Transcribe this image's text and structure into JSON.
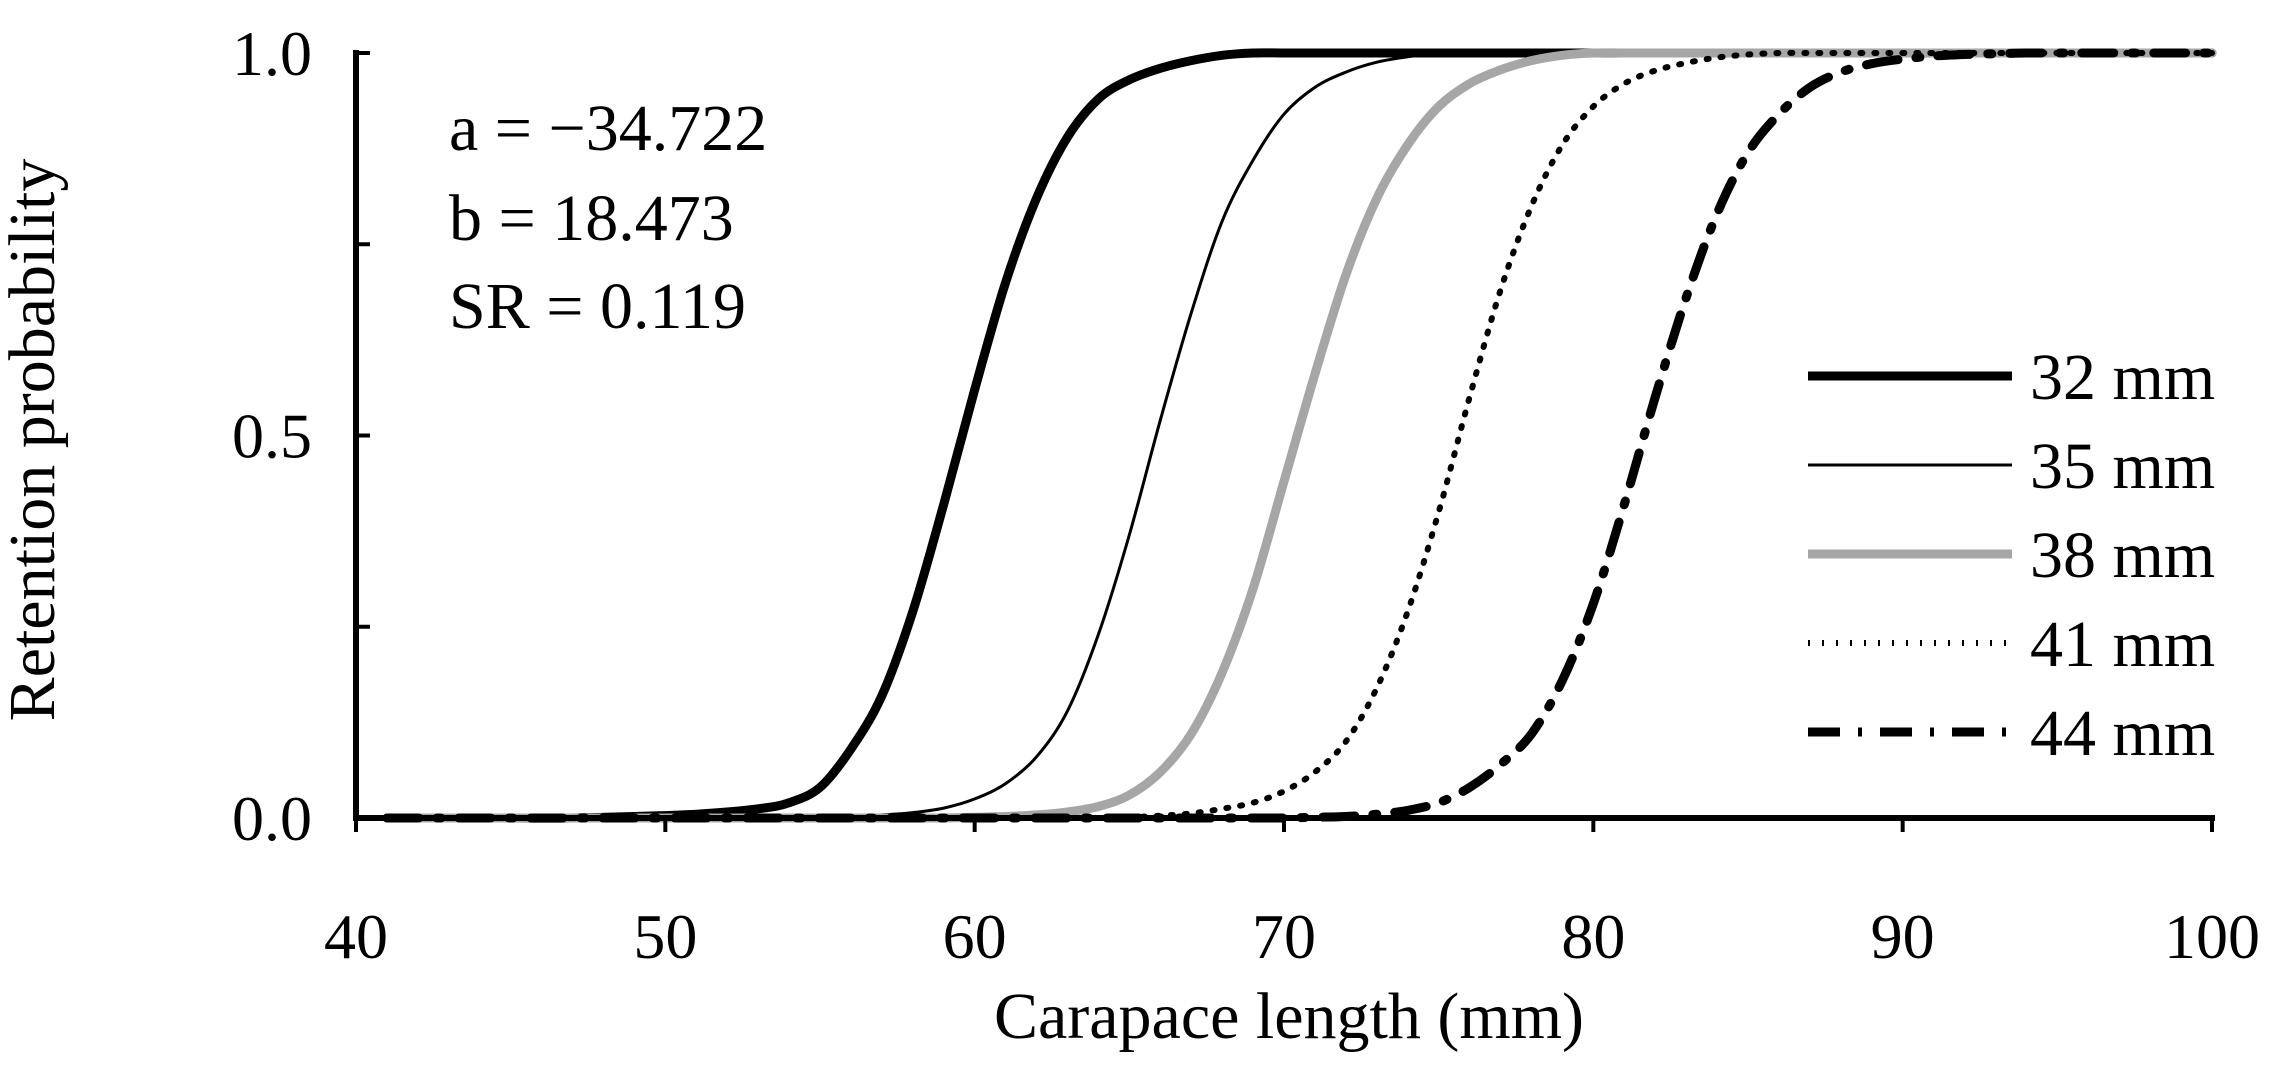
{
  "chart_data": {
    "type": "line",
    "title": "",
    "xlabel": "Carapace length (mm)",
    "ylabel": "Retention probability",
    "xlim": [
      40,
      100
    ],
    "ylim": [
      0,
      1
    ],
    "xticks": [
      40,
      50,
      60,
      70,
      80,
      90,
      100
    ],
    "xtick_labels": [
      "40",
      "50",
      "60",
      "70",
      "80",
      "90",
      "100"
    ],
    "yticks": [
      0,
      0.25,
      0.5,
      0.75,
      1.0
    ],
    "ytick_labels": [
      "0.0",
      "",
      "0.5",
      "",
      "1.0"
    ],
    "grid": false,
    "legend_position": "right",
    "annotation_lines": [
      "a = −34.722",
      "b = 18.473",
      "SR = 0.119"
    ],
    "parameters": {
      "a": -34.722,
      "b": 18.473,
      "SR": 0.119
    },
    "x": [
      41,
      43,
      45,
      47,
      49,
      51,
      53,
      54,
      55,
      56,
      57,
      58,
      59,
      60,
      61,
      62,
      63,
      64,
      65,
      66,
      67,
      68,
      69,
      70,
      71,
      72,
      73,
      74,
      75,
      76,
      77,
      78,
      79,
      80,
      81,
      82,
      83,
      84,
      85,
      86,
      87,
      88,
      89,
      90,
      91,
      92,
      93,
      94,
      95,
      96,
      97,
      98,
      99,
      100
    ],
    "series": [
      {
        "name": "32 mm",
        "color": "#000000",
        "style": "thick-solid",
        "values": [
          0,
          0,
          0,
          0,
          0.002,
          0.005,
          0.012,
          0.02,
          0.04,
          0.09,
          0.16,
          0.27,
          0.41,
          0.56,
          0.7,
          0.81,
          0.89,
          0.94,
          0.965,
          0.98,
          0.99,
          0.997,
          1,
          1,
          1,
          1,
          1,
          1,
          1,
          1,
          1,
          1,
          1,
          1,
          1,
          1,
          1,
          1,
          1,
          1,
          1,
          1,
          1,
          1,
          1,
          1,
          1,
          1,
          1,
          1,
          1,
          1,
          1,
          1
        ]
      },
      {
        "name": "35 mm",
        "color": "#000000",
        "style": "thin-solid",
        "values": [
          0,
          0,
          0,
          0,
          0,
          0,
          0,
          0,
          0.001,
          0.002,
          0.004,
          0.007,
          0.013,
          0.025,
          0.045,
          0.08,
          0.14,
          0.24,
          0.37,
          0.52,
          0.66,
          0.78,
          0.86,
          0.92,
          0.955,
          0.975,
          0.988,
          0.995,
          1,
          1,
          1,
          1,
          1,
          1,
          1,
          1,
          1,
          1,
          1,
          1,
          1,
          1,
          1,
          1,
          1,
          1,
          1,
          1,
          1,
          1,
          1,
          1,
          1,
          1
        ]
      },
      {
        "name": "38 mm",
        "color": "#a6a6a6",
        "style": "thick-solid",
        "values": [
          0,
          0,
          0,
          0,
          0,
          0,
          0,
          0,
          0,
          0,
          0,
          0,
          0,
          0.001,
          0.002,
          0.004,
          0.008,
          0.015,
          0.03,
          0.06,
          0.11,
          0.19,
          0.3,
          0.44,
          0.58,
          0.71,
          0.81,
          0.88,
          0.93,
          0.96,
          0.978,
          0.99,
          0.997,
          1,
          1,
          1,
          1,
          1,
          1,
          1,
          1,
          1,
          1,
          1,
          1,
          1,
          1,
          1,
          1,
          1,
          1,
          1,
          1,
          1
        ]
      },
      {
        "name": "41 mm",
        "color": "#000000",
        "style": "dotted",
        "values": [
          0,
          0,
          0,
          0,
          0,
          0,
          0,
          0,
          0,
          0,
          0,
          0,
          0,
          0,
          0,
          0,
          0,
          0,
          0.001,
          0.003,
          0.006,
          0.012,
          0.02,
          0.035,
          0.06,
          0.1,
          0.17,
          0.27,
          0.4,
          0.55,
          0.69,
          0.8,
          0.88,
          0.93,
          0.96,
          0.977,
          0.987,
          0.994,
          0.998,
          1,
          1,
          1,
          1,
          1,
          1,
          1,
          1,
          1,
          1,
          1,
          1,
          1,
          1,
          1
        ]
      },
      {
        "name": "44 mm",
        "color": "#000000",
        "style": "dash-dot",
        "values": [
          0,
          0,
          0,
          0,
          0,
          0,
          0,
          0,
          0,
          0,
          0,
          0,
          0,
          0,
          0,
          0,
          0,
          0,
          0,
          0,
          0,
          0,
          0,
          0,
          0.001,
          0.002,
          0.005,
          0.01,
          0.02,
          0.04,
          0.07,
          0.11,
          0.18,
          0.28,
          0.41,
          0.55,
          0.68,
          0.79,
          0.87,
          0.92,
          0.955,
          0.975,
          0.986,
          0.992,
          0.996,
          0.998,
          0.999,
          1,
          1,
          1,
          1,
          1,
          1,
          1
        ]
      }
    ]
  }
}
